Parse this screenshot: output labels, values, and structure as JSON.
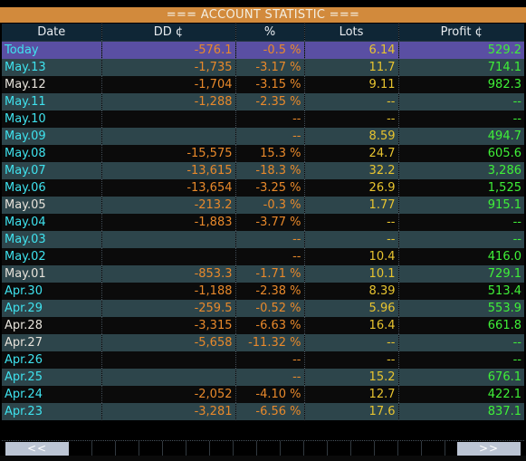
{
  "title": "=== ACCOUNT STATISTIC ===",
  "columns": [
    "Date",
    "DD ¢",
    "%",
    "Lots",
    "Profit ¢"
  ],
  "rows": [
    {
      "date": "Today",
      "dd": "-576.1",
      "pct": "-0.5 %",
      "lots": "6.14",
      "profit": "529.2"
    },
    {
      "date": "May.13",
      "dd": "-1,735",
      "pct": "-3.17 %",
      "lots": "11.7",
      "profit": "714.1"
    },
    {
      "date": "May.12",
      "dd": "-1,704",
      "pct": "-3.15 %",
      "lots": "9.11",
      "profit": "982.3"
    },
    {
      "date": "May.11",
      "dd": "-1,288",
      "pct": "-2.35 %",
      "lots": "--",
      "profit": "--"
    },
    {
      "date": "May.10",
      "dd": "",
      "pct": "--",
      "lots": "--",
      "profit": "--"
    },
    {
      "date": "May.09",
      "dd": "",
      "pct": "--",
      "lots": "8.59",
      "profit": "494.7"
    },
    {
      "date": "May.08",
      "dd": "-15,575",
      "pct": "15.3 %",
      "lots": "24.7",
      "profit": "605.6"
    },
    {
      "date": "May.07",
      "dd": "-13,615",
      "pct": "-18.3 %",
      "lots": "32.2",
      "profit": "3,286"
    },
    {
      "date": "May.06",
      "dd": "-13,654",
      "pct": "-3.25 %",
      "lots": "26.9",
      "profit": "1,525"
    },
    {
      "date": "May.05",
      "dd": "-213.2",
      "pct": "-0.3 %",
      "lots": "1.77",
      "profit": "915.1"
    },
    {
      "date": "May.04",
      "dd": "-1,883",
      "pct": "-3.77 %",
      "lots": "--",
      "profit": "--"
    },
    {
      "date": "May.03",
      "dd": "",
      "pct": "--",
      "lots": "--",
      "profit": "--"
    },
    {
      "date": "May.02",
      "dd": "",
      "pct": "--",
      "lots": "10.4",
      "profit": "416.0"
    },
    {
      "date": "May.01",
      "dd": "-853.3",
      "pct": "-1.71 %",
      "lots": "10.1",
      "profit": "729.1"
    },
    {
      "date": "Apr.30",
      "dd": "-1,188",
      "pct": "-2.38 %",
      "lots": "8.39",
      "profit": "513.4"
    },
    {
      "date": "Apr.29",
      "dd": "-259.5",
      "pct": "-0.52 %",
      "lots": "5.96",
      "profit": "553.9"
    },
    {
      "date": "Apr.28",
      "dd": "-3,315",
      "pct": "-6.63 %",
      "lots": "16.4",
      "profit": "661.8"
    },
    {
      "date": "Apr.27",
      "dd": "-5,658",
      "pct": "-11.32 %",
      "lots": "--",
      "profit": "--"
    },
    {
      "date": "Apr.26",
      "dd": "",
      "pct": "--",
      "lots": "--",
      "profit": "--"
    },
    {
      "date": "Apr.25",
      "dd": "",
      "pct": "--",
      "lots": "15.2",
      "profit": "676.1"
    },
    {
      "date": "Apr.24",
      "dd": "-2,052",
      "pct": "-4.10 %",
      "lots": "12.7",
      "profit": "422.1"
    },
    {
      "date": "Apr.23",
      "dd": "-3,281",
      "pct": "-6.56 %",
      "lots": "17.6",
      "profit": "837.1"
    }
  ],
  "nav": {
    "prev_label": "<<",
    "next_label": ">>"
  },
  "colors": {
    "title_bar": "#d28a3c",
    "today_row": "#5a4fa3",
    "odd_row": "#2d454b",
    "even_row": "#0b0b0b",
    "date_cyan": "#3fe2ee",
    "dd_orange": "#e8892b",
    "lots_yellow": "#e8c42f",
    "profit_green": "#3ff038"
  }
}
